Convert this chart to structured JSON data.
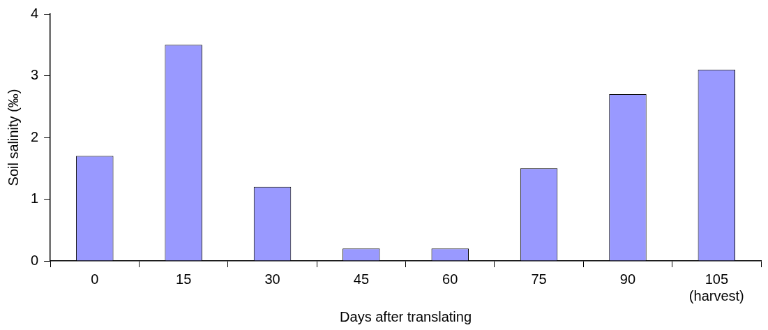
{
  "chart_data": {
    "type": "bar",
    "xlabel": "Days after translating",
    "ylabel": "Soil salinity (‰)",
    "categories": [
      "0",
      "15",
      "30",
      "45",
      "60",
      "75",
      "90",
      "105 (harvest)"
    ],
    "values": [
      1.7,
      3.5,
      1.2,
      0.2,
      0.2,
      1.5,
      2.7,
      3.1
    ],
    "color": "#9999ff",
    "ylim": [
      0,
      4
    ],
    "yticks": [
      0,
      1,
      2,
      3,
      4
    ],
    "grid": false,
    "legend": false
  }
}
